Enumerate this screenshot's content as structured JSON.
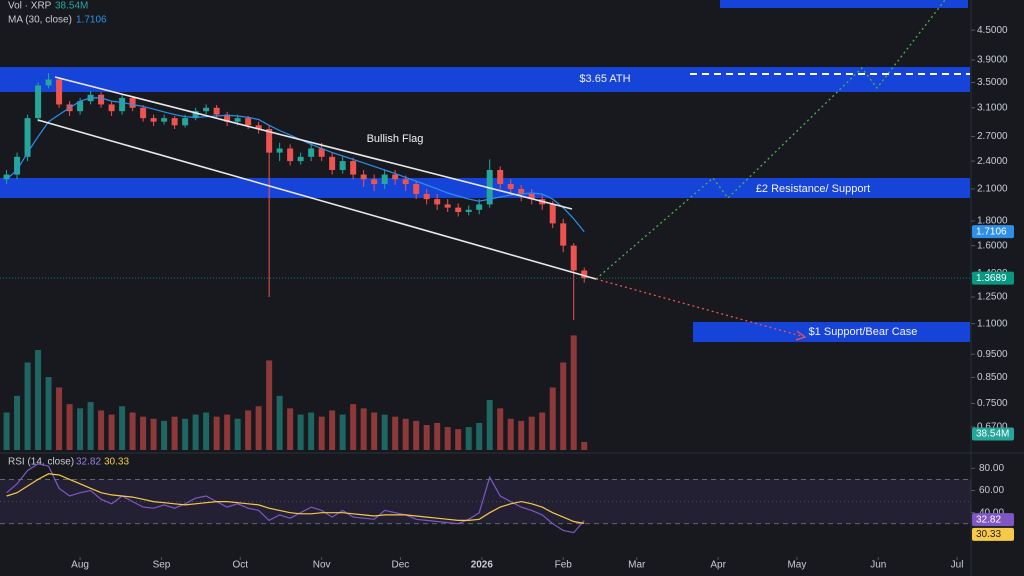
{
  "chart_data": {
    "type": "candlestick",
    "x": [
      3,
      7,
      11,
      15,
      19,
      23,
      27,
      31,
      35,
      39,
      43,
      47,
      51,
      55,
      59,
      63,
      67,
      71,
      75,
      79,
      83,
      87,
      91,
      95,
      99,
      103,
      107,
      111,
      115,
      119,
      123,
      127,
      131,
      135,
      139,
      143,
      147,
      151,
      155,
      159,
      163,
      167,
      171,
      175,
      179,
      183,
      187,
      191,
      195,
      199,
      203,
      207,
      211,
      215,
      219,
      223
    ],
    "xlim": [
      0.5,
      370.3
    ],
    "xticks": [
      {
        "value": 31,
        "label": "Aug"
      },
      {
        "value": 62,
        "label": "Sep"
      },
      {
        "value": 92,
        "label": "Oct"
      },
      {
        "value": 123,
        "label": "Nov"
      },
      {
        "value": 153,
        "label": "Dec"
      },
      {
        "value": 184,
        "label": "2026"
      },
      {
        "value": 215,
        "label": "Feb"
      },
      {
        "value": 243,
        "label": "Mar"
      },
      {
        "value": 274,
        "label": "Apr"
      },
      {
        "value": 304,
        "label": "May"
      },
      {
        "value": 335,
        "label": "Jun"
      },
      {
        "value": 365,
        "label": "Jul"
      }
    ],
    "ylim": [
      0.6,
      5.2
    ],
    "log_scale": true,
    "yticks": [
      {
        "value": 4.5,
        "label": "4.5000"
      },
      {
        "value": 3.9,
        "label": "3.9000"
      },
      {
        "value": 3.5,
        "label": "3.5000"
      },
      {
        "value": 3.1,
        "label": "3.1000"
      },
      {
        "value": 2.7,
        "label": "2.7000"
      },
      {
        "value": 2.4,
        "label": "2.4000"
      },
      {
        "value": 2.1,
        "label": "2.1000"
      },
      {
        "value": 1.8,
        "label": "1.8000"
      },
      {
        "value": 1.6,
        "label": "1.6000"
      },
      {
        "value": 1.4,
        "label": "1.4000"
      },
      {
        "value": 1.25,
        "label": "1.2500"
      },
      {
        "value": 1.1,
        "label": "1.1000"
      },
      {
        "value": 0.95,
        "label": "0.9500"
      },
      {
        "value": 0.85,
        "label": "0.8500"
      },
      {
        "value": 0.75,
        "label": "0.7500"
      },
      {
        "value": 0.67,
        "label": "0.6700"
      }
    ],
    "up_color": "#26a69a",
    "down_color": "#ef5350",
    "ohlc": {
      "open": [
        2.2,
        2.25,
        2.45,
        2.95,
        3.45,
        3.55,
        3.15,
        3.05,
        3.2,
        3.3,
        3.15,
        3.05,
        3.25,
        3.1,
        2.95,
        2.9,
        2.95,
        2.85,
        2.95,
        3.05,
        3.1,
        3.0,
        2.9,
        2.95,
        2.85,
        2.8,
        2.5,
        2.55,
        2.4,
        2.45,
        2.55,
        2.45,
        2.3,
        2.4,
        2.25,
        2.2,
        2.15,
        2.25,
        2.2,
        2.15,
        2.05,
        2.0,
        1.95,
        1.92,
        1.88,
        1.9,
        1.95,
        2.3,
        2.15,
        2.1,
        2.05,
        2.0,
        1.95,
        1.78,
        1.6,
        1.42
      ],
      "high": [
        2.3,
        2.5,
        3.0,
        3.5,
        3.66,
        3.58,
        3.2,
        3.25,
        3.36,
        3.34,
        3.2,
        3.3,
        3.28,
        3.14,
        3.0,
        3.0,
        2.98,
        3.0,
        3.1,
        3.15,
        3.14,
        3.04,
        3.0,
        2.98,
        2.9,
        2.85,
        2.62,
        2.6,
        2.5,
        2.62,
        2.62,
        2.5,
        2.45,
        2.44,
        2.3,
        2.25,
        2.3,
        2.3,
        2.24,
        2.18,
        2.1,
        2.05,
        2.0,
        1.96,
        1.94,
        2.0,
        2.42,
        2.34,
        2.2,
        2.14,
        2.1,
        2.04,
        1.98,
        1.82,
        1.62,
        1.44
      ],
      "low": [
        2.15,
        2.2,
        2.4,
        2.9,
        3.4,
        3.1,
        2.98,
        3.0,
        3.15,
        3.1,
        2.98,
        3.0,
        3.05,
        2.9,
        2.84,
        2.86,
        2.8,
        2.82,
        2.92,
        3.0,
        2.94,
        2.84,
        2.85,
        2.8,
        2.74,
        1.25,
        2.4,
        2.35,
        2.36,
        2.4,
        2.4,
        2.25,
        2.26,
        2.2,
        2.12,
        2.08,
        2.1,
        2.14,
        2.08,
        2.0,
        1.95,
        1.9,
        1.88,
        1.84,
        1.85,
        1.86,
        1.92,
        2.1,
        2.05,
        1.98,
        1.95,
        1.9,
        1.74,
        1.55,
        1.12,
        1.34
      ],
      "close": [
        2.25,
        2.45,
        2.95,
        3.45,
        3.55,
        3.15,
        3.05,
        3.2,
        3.3,
        3.15,
        3.05,
        3.25,
        3.1,
        2.95,
        2.9,
        2.95,
        2.85,
        2.95,
        3.05,
        3.1,
        3.0,
        2.9,
        2.95,
        2.85,
        2.8,
        2.5,
        2.55,
        2.4,
        2.45,
        2.55,
        2.45,
        2.3,
        2.4,
        2.25,
        2.2,
        2.15,
        2.25,
        2.2,
        2.15,
        2.05,
        2.0,
        1.95,
        1.92,
        1.88,
        1.9,
        1.95,
        2.3,
        2.15,
        2.1,
        2.05,
        2.0,
        1.95,
        1.78,
        1.6,
        1.42,
        1.3689
      ]
    },
    "last_price_color": "#089981",
    "ma": {
      "name": "MA (30, close)",
      "color": "#2e8fe8",
      "values": [
        2.2,
        2.3,
        2.5,
        2.7,
        2.9,
        3.0,
        3.1,
        3.2,
        3.25,
        3.25,
        3.2,
        3.18,
        3.15,
        3.12,
        3.08,
        3.04,
        3.0,
        2.97,
        2.96,
        2.97,
        2.98,
        2.99,
        2.98,
        2.96,
        2.93,
        2.85,
        2.78,
        2.72,
        2.66,
        2.6,
        2.55,
        2.5,
        2.46,
        2.42,
        2.38,
        2.34,
        2.3,
        2.26,
        2.22,
        2.18,
        2.14,
        2.1,
        2.06,
        2.03,
        2.0,
        1.98,
        2.0,
        2.02,
        2.04,
        2.05,
        2.06,
        2.05,
        2.0,
        1.92,
        1.82,
        1.7106
      ]
    },
    "volume": {
      "name": "Vol · XRP",
      "color": "#26a69a",
      "ylim": [
        0,
        600
      ],
      "values": [
        180,
        260,
        420,
        480,
        350,
        300,
        220,
        200,
        230,
        190,
        170,
        210,
        180,
        160,
        150,
        140,
        160,
        150,
        170,
        180,
        160,
        170,
        150,
        190,
        210,
        430,
        260,
        200,
        170,
        180,
        160,
        190,
        170,
        220,
        200,
        180,
        170,
        160,
        150,
        140,
        120,
        130,
        110,
        100,
        110,
        130,
        240,
        200,
        150,
        140,
        160,
        180,
        300,
        420,
        550,
        38.54
      ],
      "last": {
        "value": 38.54,
        "label": "38.54M"
      }
    },
    "rsi": {
      "name": "RSI (14, close)",
      "color": "#7e57c2",
      "ma_color": "#f7c948",
      "ylim": [
        0,
        92
      ],
      "yticks": [
        {
          "value": 80,
          "label": "80.00"
        },
        {
          "value": 60,
          "label": "60.00"
        },
        {
          "value": 40,
          "label": "40.00"
        }
      ],
      "band": [
        30,
        70
      ],
      "values": [
        58,
        66,
        78,
        84,
        82,
        62,
        55,
        58,
        60,
        52,
        48,
        55,
        50,
        45,
        44,
        47,
        44,
        48,
        53,
        55,
        50,
        45,
        48,
        44,
        42,
        33,
        38,
        35,
        40,
        45,
        42,
        36,
        42,
        36,
        35,
        34,
        42,
        40,
        38,
        34,
        33,
        32,
        31,
        30,
        34,
        40,
        72,
        55,
        50,
        45,
        42,
        38,
        30,
        24,
        22,
        32.82
      ],
      "ma_values": [
        55,
        58,
        64,
        70,
        75,
        74,
        70,
        66,
        62,
        58,
        56,
        55,
        54,
        52,
        50,
        49,
        48,
        47,
        48,
        49,
        50,
        50,
        49,
        48,
        47,
        44,
        42,
        40,
        39,
        39,
        40,
        40,
        40,
        39,
        38,
        37,
        38,
        38,
        38,
        37,
        36,
        35,
        34,
        33,
        33,
        34,
        40,
        45,
        48,
        50,
        48,
        45,
        40,
        36,
        32,
        30.33
      ]
    },
    "annotations": [
      "$3.65 ATH",
      "Bullish Flag",
      "£2 Resistance/ Support",
      "$1 Support/Bear Case"
    ]
  }
}
